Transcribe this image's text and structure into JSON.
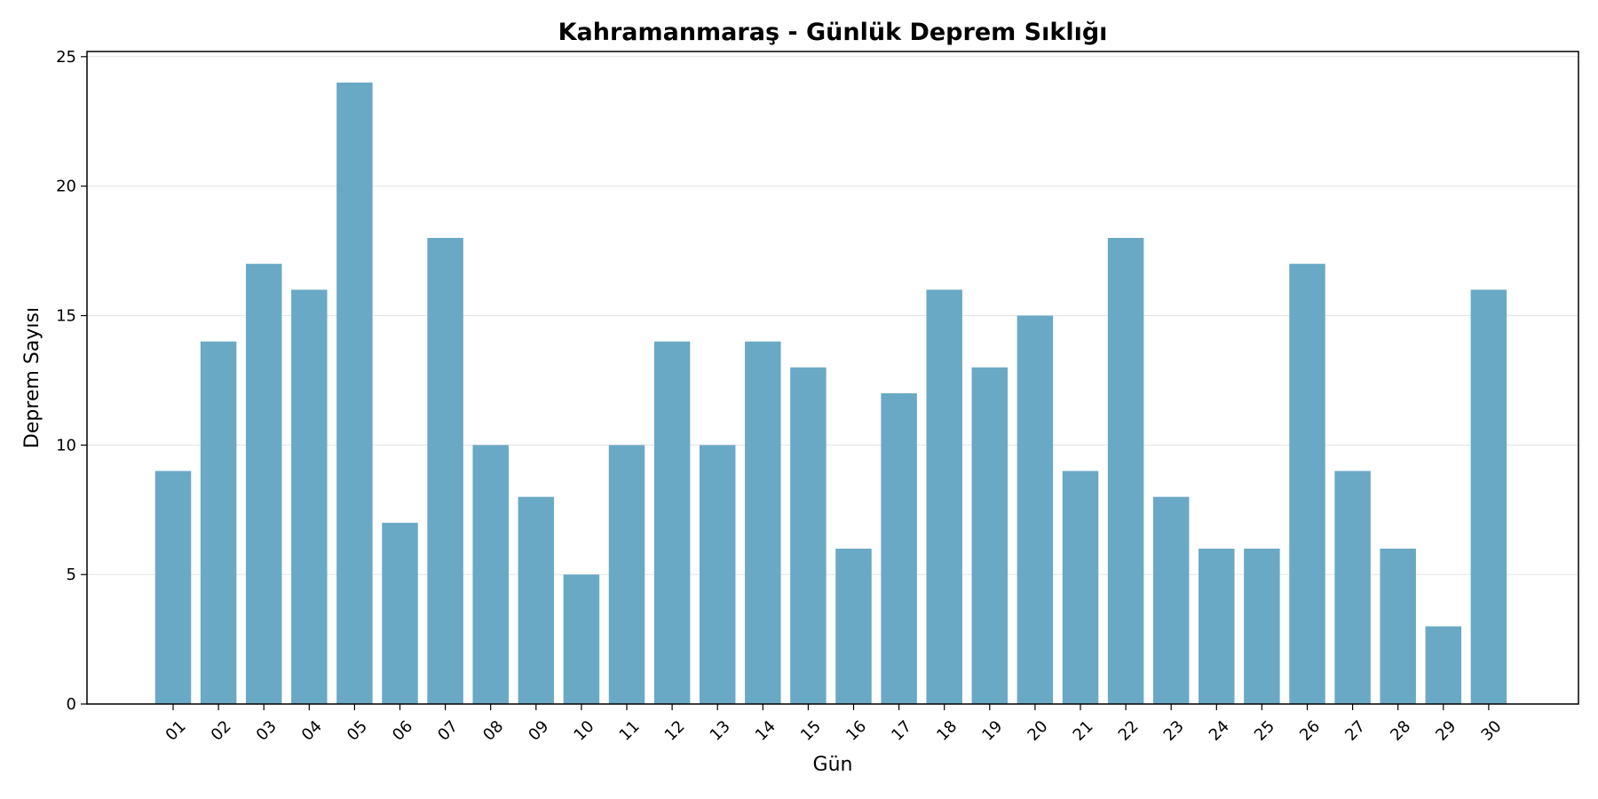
{
  "chart_data": {
    "type": "bar",
    "title": "Kahramanmaraş - Günlük Deprem Sıklığı",
    "xlabel": "Gün",
    "ylabel": "Deprem Sayısı",
    "categories": [
      "01",
      "02",
      "03",
      "04",
      "05",
      "06",
      "07",
      "08",
      "09",
      "10",
      "11",
      "12",
      "13",
      "14",
      "15",
      "16",
      "17",
      "18",
      "19",
      "20",
      "21",
      "22",
      "23",
      "24",
      "25",
      "26",
      "27",
      "28",
      "29",
      "30"
    ],
    "values": [
      9,
      14,
      17,
      16,
      24,
      7,
      18,
      10,
      8,
      5,
      10,
      14,
      10,
      14,
      13,
      6,
      12,
      16,
      13,
      15,
      9,
      18,
      8,
      6,
      6,
      17,
      9,
      6,
      3,
      16
    ],
    "ylim": [
      0,
      25.2
    ],
    "yticks": [
      0,
      5,
      10,
      15,
      20,
      25
    ],
    "grid": "horizontal",
    "xtick_rotation": -45,
    "bar_color": "#6aa9c5"
  }
}
